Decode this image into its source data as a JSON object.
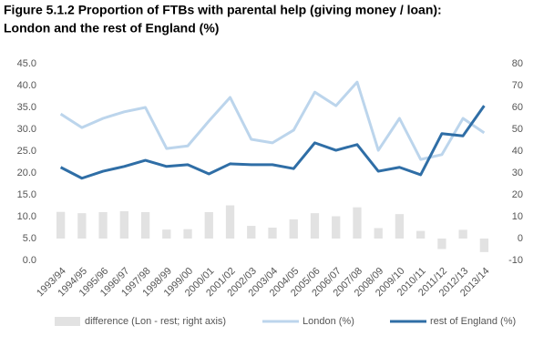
{
  "chart_data": {
    "type": "bar-line",
    "title": [
      "Figure 5.1.2 Proportion of FTBs with parental help (giving money / loan):",
      "London and the rest of England (%)"
    ],
    "categories": [
      "1993/94",
      "1994/95",
      "1995/96",
      "1996/97",
      "1997/98",
      "1998/99",
      "1999/00",
      "2000/01",
      "2001/02",
      "2002/03",
      "2003/04",
      "2004/05",
      "2005/06",
      "2006/07",
      "2007/08",
      "2008/09",
      "2009/10",
      "2010/11",
      "2011/12",
      "2012/13",
      "2013/14"
    ],
    "series": [
      {
        "name": "difference (Lon - rest; right axis)",
        "color": "#e2e2e2",
        "kind": "bar",
        "axis": "y2",
        "values": [
          12.2,
          11.6,
          12.1,
          12.5,
          12.1,
          4.1,
          4.3,
          12.1,
          15.2,
          5.8,
          5.0,
          8.8,
          11.6,
          10.2,
          14.3,
          4.8,
          11.2,
          3.5,
          -4.8,
          4.0,
          -6.2
        ]
      },
      {
        "name": "London (%)",
        "color": "#bcd5ec",
        "kind": "line",
        "values": [
          33.5,
          30.4,
          32.5,
          34.0,
          35.0,
          25.6,
          26.2,
          31.9,
          37.3,
          27.7,
          26.9,
          29.8,
          38.5,
          35.4,
          40.8,
          25.2,
          32.5,
          23.1,
          24.2,
          32.5,
          29.2
        ]
      },
      {
        "name": "rest of England (%)",
        "color": "#2f6ea6",
        "kind": "line",
        "values": [
          21.3,
          18.8,
          20.4,
          21.5,
          22.9,
          21.5,
          21.9,
          19.8,
          22.1,
          21.9,
          21.9,
          21.0,
          26.9,
          25.2,
          26.5,
          20.4,
          21.3,
          19.6,
          29.0,
          28.5,
          35.4
        ]
      }
    ],
    "ylim": [
      0,
      45
    ],
    "yticks": [
      {
        "value": 0,
        "label": "0.0"
      },
      {
        "value": 5,
        "label": "5.0"
      },
      {
        "value": 10,
        "label": "10.0"
      },
      {
        "value": 15,
        "label": "15.0"
      },
      {
        "value": 20,
        "label": "20.0"
      },
      {
        "value": 25,
        "label": "25.0"
      },
      {
        "value": 30,
        "label": "30.0"
      },
      {
        "value": 35,
        "label": "35.0"
      },
      {
        "value": 40,
        "label": "40.0"
      },
      {
        "value": 45,
        "label": "45.0"
      }
    ],
    "y2lim": [
      -10,
      80
    ],
    "y2ticks": [
      -10,
      0,
      10,
      20,
      30,
      40,
      50,
      60,
      70,
      80
    ],
    "grid": false
  }
}
